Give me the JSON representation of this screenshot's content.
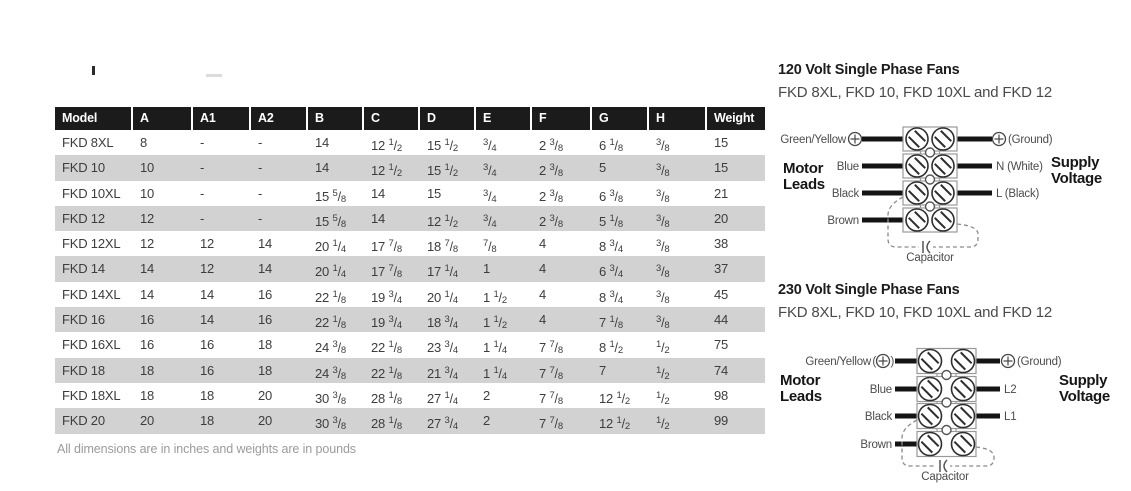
{
  "table": {
    "columns": [
      "Model",
      "A",
      "A1",
      "A2",
      "B",
      "C",
      "D",
      "E",
      "F",
      "G",
      "H",
      "Weight"
    ],
    "rows": [
      [
        "FKD 8XL",
        "8",
        "-",
        "-",
        "14",
        "12 1/2",
        "15 1/2",
        "3/4",
        "2 3/8",
        "6 1/8",
        "3/8",
        "15"
      ],
      [
        "FKD 10",
        "10",
        "-",
        "-",
        "14",
        "12 1/2",
        "15 1/2",
        "3/4",
        "2 3/8",
        "5",
        "3/8",
        "15"
      ],
      [
        "FKD 10XL",
        "10",
        "-",
        "-",
        "15 5/8",
        "14",
        "15",
        "3/4",
        "2 3/8",
        "6 3/8",
        "3/8",
        "21"
      ],
      [
        "FKD 12",
        "12",
        "-",
        "-",
        "15 5/8",
        "14",
        "12 1/2",
        "3/4",
        "2 3/8",
        "5 1/8",
        "3/8",
        "20"
      ],
      [
        "FKD 12XL",
        "12",
        "12",
        "14",
        "20 1/4",
        "17 7/8",
        "18 7/8",
        "7/8",
        "4",
        "8 3/4",
        "3/8",
        "38"
      ],
      [
        "FKD 14",
        "14",
        "12",
        "14",
        "20 1/4",
        "17 7/8",
        "17 1/4",
        "1",
        "4",
        "6 3/4",
        "3/8",
        "37"
      ],
      [
        "FKD 14XL",
        "14",
        "14",
        "16",
        "22 1/8",
        "19 3/4",
        "20 1/4",
        "1 1/2",
        "4",
        "8 3/4",
        "3/8",
        "45"
      ],
      [
        "FKD 16",
        "16",
        "14",
        "16",
        "22 1/8",
        "19 3/4",
        "18 3/4",
        "1 1/2",
        "4",
        "7 1/8",
        "3/8",
        "44"
      ],
      [
        "FKD 16XL",
        "16",
        "16",
        "18",
        "24 3/8",
        "22 1/8",
        "23 3/4",
        "1 1/4",
        "7 7/8",
        "8 1/2",
        "1/2",
        "75"
      ],
      [
        "FKD 18",
        "18",
        "16",
        "18",
        "24 3/8",
        "22 1/8",
        "21 3/4",
        "1 1/4",
        "7 7/8",
        "7",
        "1/2",
        "74"
      ],
      [
        "FKD 18XL",
        "18",
        "18",
        "20",
        "30 3/8",
        "28 1/8",
        "27 1/4",
        "2",
        "7 7/8",
        "12 1/2",
        "1/2",
        "98"
      ],
      [
        "FKD 20",
        "20",
        "18",
        "20",
        "30 3/8",
        "28 1/8",
        "27 3/4",
        "2",
        "7 7/8",
        "12 1/2",
        "1/2",
        "99"
      ]
    ],
    "footnote": "All dimensions are in inches and weights are in pounds"
  },
  "diagrams": [
    {
      "title": "120 Volt Single Phase Fans",
      "subtitle": "FKD 8XL, FKD 10, FKD 10XL and FKD 12",
      "motor_leads_lines": [
        "Motor",
        "Leads"
      ],
      "supply_voltage_lines": [
        "Supply",
        "Voltage"
      ],
      "leads": [
        "Green/Yellow",
        "Blue",
        "Black",
        "Brown"
      ],
      "lead_symbol": "ground-screw-icon",
      "lead_symbol_parenthesized": false,
      "supply_terminals": [
        "(Ground)",
        "N (White)",
        "L (Black)"
      ],
      "supply_ground_symbol": "ground-screw-icon",
      "capacitor_label": "Capacitor"
    },
    {
      "title": "230 Volt Single Phase Fans",
      "subtitle": "FKD 8XL, FKD 10, FKD 10XL and FKD 12",
      "motor_leads_lines": [
        "Motor",
        "Leads"
      ],
      "supply_voltage_lines": [
        "Supply",
        "Voltage"
      ],
      "leads": [
        "Green/Yellow",
        "Blue",
        "Black",
        "Brown"
      ],
      "lead_symbol": "ground-screw-icon",
      "lead_symbol_parenthesized": true,
      "supply_terminals": [
        "(Ground)",
        "L2",
        "L1"
      ],
      "supply_ground_symbol": "ground-screw-icon",
      "capacitor_label": "Capacitor"
    }
  ],
  "colors": {
    "header_bg": "#1b1b1b",
    "row_alt": "#d2d2d2",
    "table_text": "#3d3d3d",
    "footnote_text": "#9b9b9b",
    "wire": "#141414",
    "diagram_text": "#4c4c4c"
  }
}
